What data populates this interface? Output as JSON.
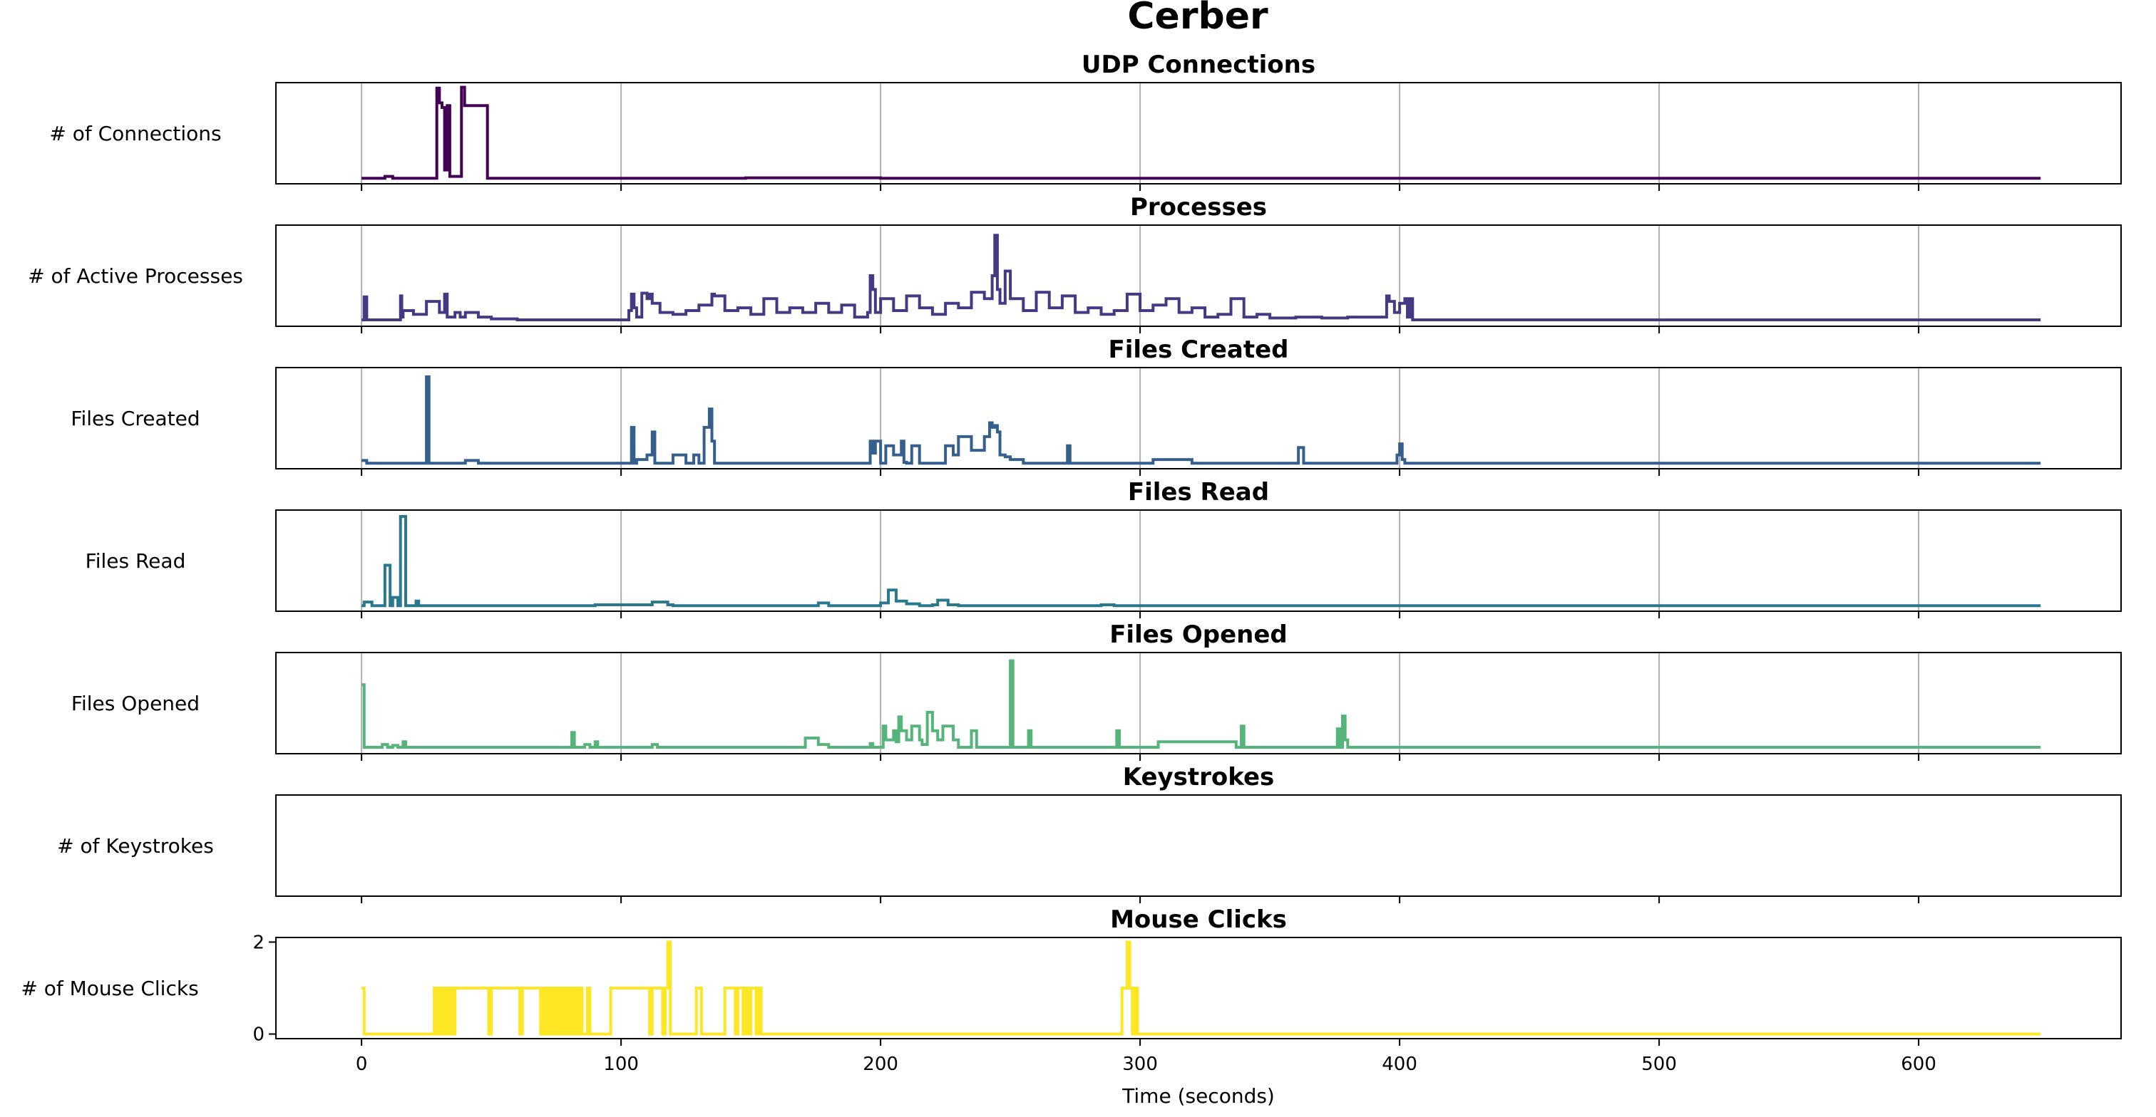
{
  "figure": {
    "title": "Cerber"
  },
  "chart_data": [
    {
      "type": "line",
      "title": "UDP Connections",
      "ylabel": "# of Connections",
      "xlabel": "",
      "xlim": [
        -33,
        678
      ],
      "ylim": [
        -0.05,
        1.05
      ],
      "show_y_ticks": false,
      "color": "#440154",
      "grid_x": true,
      "x": [
        0,
        6,
        9,
        12,
        15,
        28,
        29,
        29.8,
        30,
        30.8,
        31,
        31.5,
        32,
        32.6,
        33,
        33.6,
        34,
        38,
        38.5,
        39,
        39.7,
        40,
        41,
        42,
        43,
        44,
        45,
        46,
        47,
        48,
        48.5,
        60,
        100,
        148,
        200,
        300,
        400,
        500,
        600,
        647
      ],
      "values": [
        0.01,
        0.01,
        0.03,
        0.01,
        0.01,
        0.01,
        0.99,
        0.99,
        0.83,
        0.83,
        0.78,
        0.78,
        0.1,
        0.1,
        0.8,
        0.8,
        0.03,
        0.03,
        1.0,
        1.0,
        0.8,
        0.8,
        0.8,
        0.8,
        0.8,
        0.8,
        0.8,
        0.8,
        0.8,
        0.8,
        0.01,
        0.01,
        0.01,
        0.015,
        0.01,
        0.01,
        0.01,
        0.01,
        0.01,
        0.01
      ]
    },
    {
      "type": "line",
      "title": "Processes",
      "ylabel": "# of Active Processes",
      "xlabel": "",
      "xlim": [
        -33,
        678
      ],
      "ylim": [
        -0.05,
        1.05
      ],
      "show_y_ticks": false,
      "color": "#443983",
      "grid_x": true,
      "x": [
        0,
        1,
        1.5,
        2,
        15,
        15.5,
        16,
        20,
        25,
        30,
        32,
        33,
        36,
        38,
        40,
        45,
        50,
        60,
        100,
        103,
        104,
        105,
        106,
        108,
        110,
        111,
        112,
        115,
        120,
        125,
        130,
        135,
        136,
        140,
        145,
        150,
        155,
        160,
        165,
        170,
        175,
        180,
        185,
        190,
        195,
        196,
        197,
        198,
        200,
        205,
        210,
        215,
        220,
        225,
        230,
        235,
        240,
        243,
        244,
        245,
        246,
        248,
        250,
        255,
        260,
        265,
        270,
        275,
        280,
        285,
        290,
        295,
        300,
        305,
        310,
        315,
        320,
        325,
        330,
        335,
        340,
        345,
        350,
        360,
        370,
        380,
        390,
        395,
        396,
        398,
        400,
        402,
        403,
        404,
        405,
        410,
        500,
        600,
        647
      ],
      "values": [
        0.02,
        0.27,
        0.27,
        0.02,
        0.28,
        0.05,
        0.12,
        0.08,
        0.22,
        0.1,
        0.3,
        0.05,
        0.1,
        0.05,
        0.1,
        0.05,
        0.03,
        0.02,
        0.02,
        0.12,
        0.3,
        0.15,
        0.05,
        0.31,
        0.25,
        0.3,
        0.2,
        0.1,
        0.08,
        0.12,
        0.18,
        0.3,
        0.28,
        0.12,
        0.15,
        0.08,
        0.25,
        0.1,
        0.15,
        0.1,
        0.2,
        0.1,
        0.18,
        0.05,
        0.1,
        0.5,
        0.35,
        0.1,
        0.25,
        0.12,
        0.28,
        0.15,
        0.08,
        0.2,
        0.15,
        0.32,
        0.25,
        0.5,
        0.94,
        0.35,
        0.2,
        0.55,
        0.25,
        0.12,
        0.32,
        0.15,
        0.28,
        0.1,
        0.15,
        0.08,
        0.12,
        0.3,
        0.12,
        0.18,
        0.25,
        0.1,
        0.15,
        0.05,
        0.08,
        0.25,
        0.05,
        0.08,
        0.04,
        0.05,
        0.04,
        0.05,
        0.05,
        0.28,
        0.22,
        0.1,
        0.2,
        0.25,
        0.05,
        0.25,
        0.02,
        0.02,
        0.02,
        0.02,
        0.02
      ]
    },
    {
      "type": "line",
      "title": "Files Created",
      "ylabel": "Files Created",
      "xlabel": "",
      "xlim": [
        -33,
        678
      ],
      "ylim": [
        -0.05,
        1.05
      ],
      "show_y_ticks": false,
      "color": "#355f8d",
      "grid_x": true,
      "x": [
        0,
        2,
        20,
        24,
        25,
        26,
        40,
        45,
        100,
        104,
        105,
        106,
        110,
        112,
        113,
        114,
        115,
        120,
        125,
        128,
        130,
        132,
        134,
        135,
        136,
        138,
        140,
        150,
        170,
        190,
        196,
        197,
        198,
        200,
        202,
        205,
        208,
        209,
        210,
        212,
        215,
        220,
        225,
        228,
        230,
        235,
        240,
        242,
        243,
        244,
        245,
        246,
        248,
        250,
        255,
        260,
        270,
        272,
        273,
        274,
        280,
        290,
        300,
        305,
        320,
        340,
        360,
        361,
        362,
        363,
        380,
        398,
        399,
        400,
        401,
        402,
        403,
        404,
        410,
        500,
        600,
        647
      ],
      "values": [
        0.04,
        0.01,
        0.01,
        0.01,
        0.95,
        0.01,
        0.04,
        0.01,
        0.01,
        0.4,
        0.01,
        0.05,
        0.1,
        0.35,
        0.01,
        0.01,
        0.01,
        0.1,
        0.01,
        0.1,
        0.01,
        0.4,
        0.6,
        0.25,
        0.01,
        0.01,
        0.01,
        0.01,
        0.01,
        0.01,
        0.25,
        0.12,
        0.25,
        0.01,
        0.2,
        0.1,
        0.25,
        0.02,
        0.01,
        0.2,
        0.01,
        0.01,
        0.2,
        0.1,
        0.3,
        0.15,
        0.3,
        0.45,
        0.4,
        0.42,
        0.35,
        0.1,
        0.08,
        0.05,
        0.01,
        0.01,
        0.01,
        0.2,
        0.01,
        0.01,
        0.01,
        0.01,
        0.01,
        0.05,
        0.01,
        0.01,
        0.01,
        0.18,
        0.18,
        0.01,
        0.01,
        0.01,
        0.1,
        0.22,
        0.05,
        0.01,
        0.01,
        0.01,
        0.01,
        0.01,
        0.01,
        0.01
      ]
    },
    {
      "type": "line",
      "title": "Files Read",
      "ylabel": "Files Read",
      "xlabel": "",
      "xlim": [
        -33,
        678
      ],
      "ylim": [
        -0.05,
        1.05
      ],
      "show_y_ticks": false,
      "color": "#2a788e",
      "grid_x": true,
      "x": [
        0,
        1,
        3,
        4,
        8,
        9,
        10,
        11,
        12,
        13,
        14,
        15,
        16,
        17,
        20,
        21,
        22,
        50,
        90,
        110,
        112,
        114,
        118,
        120,
        170,
        176,
        178,
        180,
        195,
        200,
        202,
        203,
        204,
        206,
        208,
        210,
        212,
        215,
        218,
        220,
        222,
        224,
        226,
        230,
        280,
        285,
        288,
        290,
        400,
        500,
        600,
        647
      ],
      "values": [
        0.01,
        0.05,
        0.05,
        0.01,
        0.01,
        0.45,
        0.45,
        0.01,
        0.1,
        0.1,
        0.01,
        0.98,
        0.98,
        0.01,
        0.01,
        0.06,
        0.01,
        0.01,
        0.02,
        0.02,
        0.05,
        0.05,
        0.02,
        0.01,
        0.01,
        0.04,
        0.04,
        0.01,
        0.01,
        0.04,
        0.04,
        0.18,
        0.18,
        0.06,
        0.06,
        0.03,
        0.03,
        0.01,
        0.01,
        0.02,
        0.07,
        0.07,
        0.02,
        0.01,
        0.01,
        0.02,
        0.02,
        0.01,
        0.01,
        0.01,
        0.01,
        0.01
      ]
    },
    {
      "type": "line",
      "title": "Files Opened",
      "ylabel": "Files Opened",
      "xlabel": "",
      "xlim": [
        -33,
        678
      ],
      "ylim": [
        -0.05,
        1.05
      ],
      "show_y_ticks": false,
      "color": "#54b47a",
      "grid_x": true,
      "x": [
        0,
        1,
        2,
        8,
        10,
        12,
        14,
        16,
        17,
        50,
        52,
        80,
        81,
        82,
        86,
        88,
        90,
        91,
        110,
        112,
        114,
        170,
        171,
        172,
        174,
        176,
        180,
        195,
        196,
        197,
        200,
        201,
        202,
        205,
        206,
        207,
        208,
        210,
        212,
        215,
        216,
        218,
        219,
        220,
        222,
        224,
        226,
        228,
        230,
        232,
        235,
        236,
        237,
        238,
        240,
        242,
        244,
        246,
        249,
        250,
        251,
        253,
        254,
        256,
        257,
        258,
        260,
        290,
        291,
        292,
        293,
        300,
        305,
        306,
        307,
        337,
        338,
        339,
        340,
        375,
        376,
        377,
        378,
        379,
        380,
        381,
        382,
        383,
        390,
        500,
        600,
        647
      ],
      "values": [
        0.7,
        0.02,
        0.02,
        0.05,
        0.02,
        0.04,
        0.02,
        0.08,
        0.02,
        0.02,
        0.02,
        0.02,
        0.18,
        0.02,
        0.05,
        0.02,
        0.08,
        0.02,
        0.02,
        0.05,
        0.02,
        0.02,
        0.12,
        0.12,
        0.12,
        0.05,
        0.02,
        0.02,
        0.06,
        0.02,
        0.02,
        0.25,
        0.1,
        0.2,
        0.08,
        0.35,
        0.2,
        0.1,
        0.25,
        0.1,
        0.05,
        0.4,
        0.4,
        0.2,
        0.1,
        0.25,
        0.25,
        0.1,
        0.02,
        0.02,
        0.2,
        0.2,
        0.02,
        0.02,
        0.02,
        0.02,
        0.02,
        0.02,
        0.02,
        0.96,
        0.02,
        0.02,
        0.02,
        0.02,
        0.2,
        0.02,
        0.02,
        0.02,
        0.2,
        0.02,
        0.02,
        0.02,
        0.02,
        0.02,
        0.08,
        0.02,
        0.02,
        0.25,
        0.02,
        0.02,
        0.22,
        0.02,
        0.36,
        0.1,
        0.02,
        0.02,
        0.02,
        0.02,
        0.02,
        0.02,
        0.02,
        0.02
      ]
    },
    {
      "type": "line",
      "title": "Keystrokes",
      "ylabel": "# of Keystrokes",
      "xlabel": "",
      "xlim": [
        -33,
        678
      ],
      "ylim": [
        -0.05,
        1.05
      ],
      "show_y_ticks": false,
      "color": "#a2da37",
      "grid_x": false,
      "x": [],
      "values": []
    },
    {
      "type": "line",
      "title": "Mouse Clicks",
      "ylabel": "# of Mouse Clicks",
      "xlabel": "Time (seconds)",
      "xlim": [
        -33,
        678
      ],
      "ylim": [
        -0.1,
        2.1
      ],
      "show_y_ticks": true,
      "yticks": [
        0,
        2
      ],
      "color": "#fde725",
      "grid_x": false,
      "xticks": [
        0,
        100,
        200,
        300,
        400,
        500,
        600
      ],
      "x": [
        0,
        1,
        27,
        28,
        29,
        30,
        31,
        32,
        33,
        34,
        35,
        36,
        49,
        50,
        61,
        62,
        69,
        70,
        71,
        72,
        73,
        74,
        75,
        76,
        77,
        78,
        79,
        80,
        81,
        82,
        83,
        84,
        85,
        86,
        87,
        88,
        95,
        96,
        111,
        112,
        116,
        117,
        118,
        119,
        128,
        129,
        130,
        131,
        139,
        140,
        144,
        145,
        147,
        148,
        149,
        150,
        152,
        153,
        154,
        155,
        292,
        293,
        294,
        295,
        296,
        297,
        298,
        299,
        300,
        647
      ],
      "values": [
        1,
        0,
        0,
        1,
        0,
        1,
        0,
        1,
        0,
        1,
        0,
        1,
        0,
        1,
        0,
        1,
        0,
        1,
        0,
        1,
        0,
        1,
        0,
        1,
        0,
        1,
        0,
        1,
        0,
        1,
        0,
        1,
        0,
        0,
        1,
        0,
        0,
        1,
        0,
        1,
        0,
        1,
        2,
        0,
        0,
        1,
        1,
        0,
        0,
        1,
        0,
        1,
        0,
        1,
        0,
        1,
        0,
        1,
        0,
        0,
        0,
        1,
        1,
        2,
        1,
        0,
        1,
        0,
        0,
        0
      ]
    }
  ]
}
